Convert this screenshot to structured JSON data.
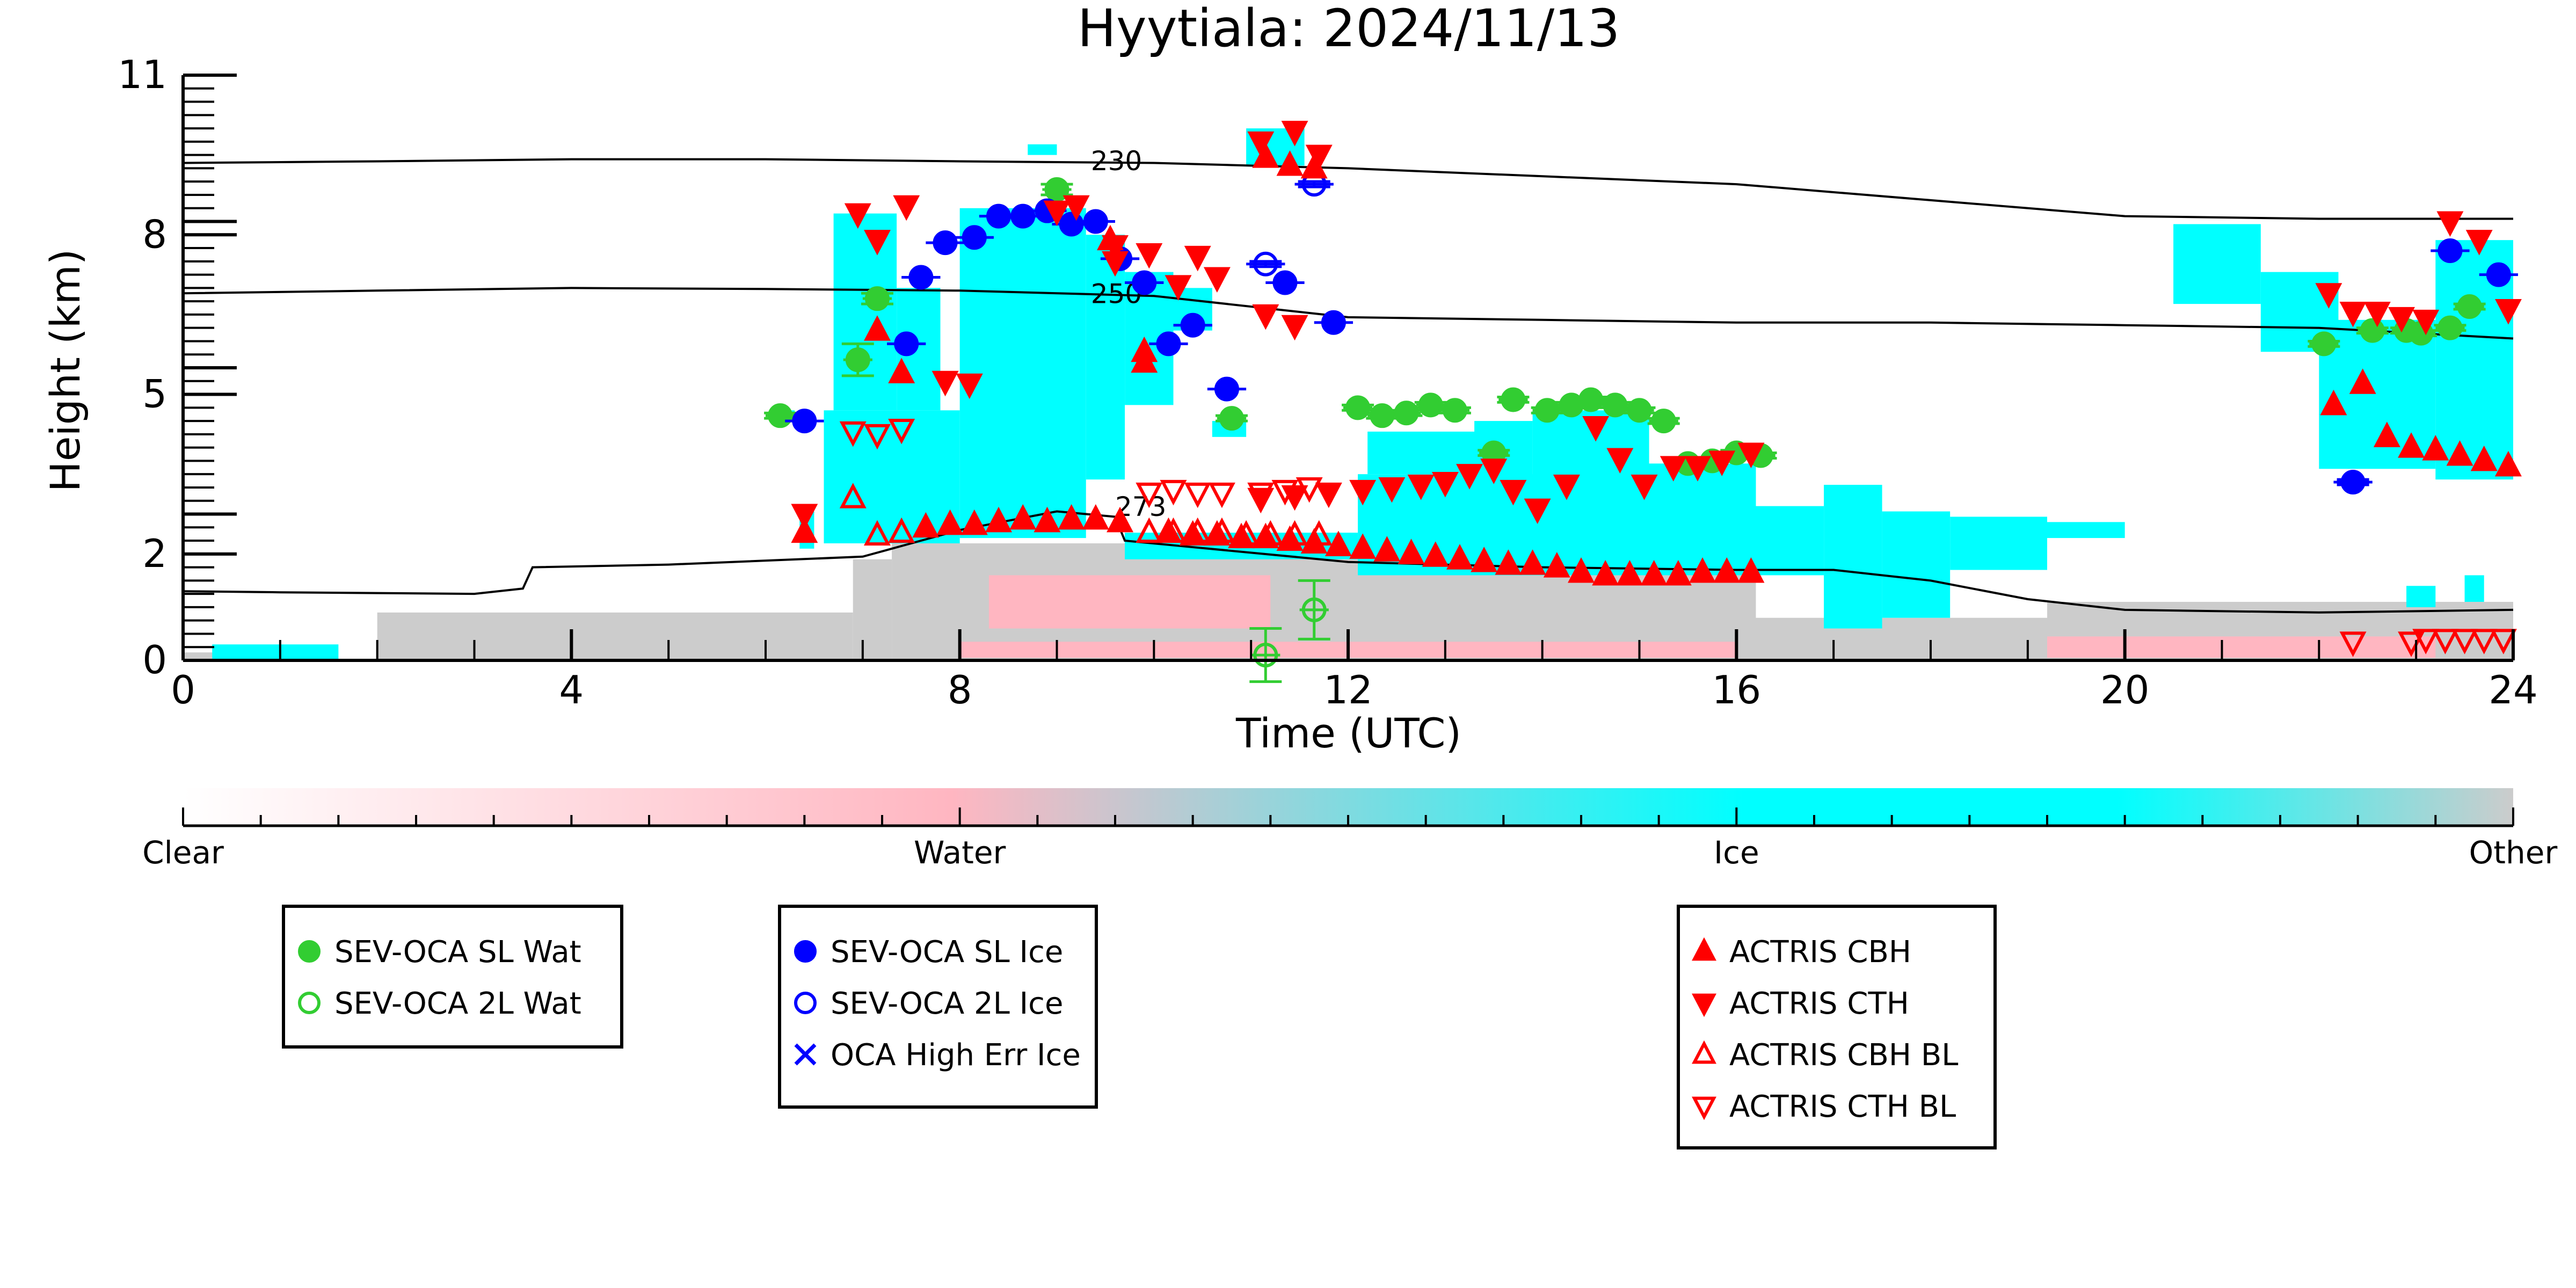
{
  "chart_data": {
    "type": "scatter",
    "title": "Hyytiala: 2024/11/13",
    "xlabel": "Time (UTC)",
    "ylabel": "Height (km)",
    "xlim": [
      0,
      24
    ],
    "ylim": [
      0,
      11
    ],
    "xticks": [
      "0",
      "4",
      "8",
      "12",
      "16",
      "20",
      "24"
    ],
    "yticks": [
      "0",
      "2",
      "5",
      "8",
      "11"
    ],
    "grid": false,
    "colors": {
      "clear": "#ffffff",
      "water": "#ffb6c1",
      "ice": "#00ffff",
      "other": "#cccccc",
      "sev_wat": "#32cd32",
      "sev_ice": "#0000ff",
      "actris": "#ff0000",
      "contour": "#000000"
    },
    "colorbar": {
      "labels": [
        "Clear",
        "Water",
        "Ice",
        "Other"
      ]
    },
    "isotherms": [
      {
        "label": "230",
        "x": [
          0,
          2,
          4,
          6,
          8,
          10,
          12,
          14,
          16,
          18,
          20,
          22,
          24
        ],
        "y": [
          9.35,
          9.38,
          9.42,
          9.42,
          9.38,
          9.35,
          9.25,
          9.1,
          8.95,
          8.65,
          8.35,
          8.3,
          8.3
        ]
      },
      {
        "label": "250",
        "x": [
          0,
          2,
          4,
          6,
          8,
          10,
          12,
          14,
          16,
          18,
          20,
          22,
          24
        ],
        "y": [
          6.9,
          6.95,
          7.0,
          6.98,
          6.95,
          6.85,
          6.45,
          6.4,
          6.35,
          6.35,
          6.3,
          6.25,
          6.05
        ]
      },
      {
        "label": "273",
        "x": [
          0,
          1,
          3,
          3.5,
          3.6,
          5,
          7,
          8,
          9,
          9.6,
          9.7,
          12,
          14,
          16,
          17,
          18,
          19,
          20,
          22,
          24
        ],
        "y": [
          1.3,
          1.28,
          1.25,
          1.35,
          1.75,
          1.8,
          1.95,
          2.45,
          2.8,
          2.7,
          2.25,
          1.85,
          1.75,
          1.7,
          1.7,
          1.5,
          1.15,
          0.95,
          0.9,
          0.95
        ]
      }
    ],
    "isotherm_label_pos": [
      {
        "x": 9.35,
        "y": 9.35
      },
      {
        "x": 9.35,
        "y": 6.85
      },
      {
        "x": 9.6,
        "y": 2.85
      }
    ],
    "legends": [
      {
        "entries": [
          {
            "label": "SEV-OCA SL Wat",
            "marker": "filled-circle",
            "color": "#32cd32"
          },
          {
            "label": "SEV-OCA 2L Wat",
            "marker": "open-circle",
            "color": "#32cd32"
          }
        ]
      },
      {
        "entries": [
          {
            "label": "SEV-OCA SL Ice",
            "marker": "filled-circle",
            "color": "#0000ff"
          },
          {
            "label": "SEV-OCA 2L Ice",
            "marker": "open-circle",
            "color": "#0000ff"
          },
          {
            "label": "OCA High Err Ice",
            "marker": "x",
            "color": "#0000ff"
          }
        ]
      },
      {
        "entries": [
          {
            "label": "ACTRIS CBH",
            "marker": "triangle-up",
            "color": "#ff0000"
          },
          {
            "label": "ACTRIS CTH",
            "marker": "triangle-down",
            "color": "#ff0000"
          },
          {
            "label": "ACTRIS CBH BL",
            "marker": "open-triangle-up",
            "color": "#ff0000"
          },
          {
            "label": "ACTRIS CTH BL",
            "marker": "open-triangle-down",
            "color": "#ff0000"
          }
        ]
      }
    ],
    "series": [
      {
        "name": "SEV-OCA SL Wat",
        "x": [
          6.15,
          6.95,
          7.15,
          9.0,
          10.8,
          12.1,
          12.35,
          12.6,
          12.85,
          13.1,
          13.5,
          13.7,
          14.05,
          14.3,
          14.5,
          14.75,
          15.0,
          15.25,
          15.5,
          15.75,
          16.0,
          16.25,
          22.05,
          22.55,
          22.9,
          23.05,
          23.35,
          23.55
        ],
        "y": [
          4.6,
          5.65,
          6.8,
          8.85,
          4.55,
          4.75,
          4.6,
          4.65,
          4.8,
          4.7,
          3.9,
          4.9,
          4.7,
          4.8,
          4.9,
          4.8,
          4.7,
          4.5,
          3.7,
          3.75,
          3.9,
          3.85,
          5.95,
          6.2,
          6.2,
          6.15,
          6.25,
          6.65
        ],
        "xerr": 0.15,
        "yerr": [
          0.05,
          0.3,
          0.1,
          0.1,
          0.05,
          0.05,
          0.05,
          0.05,
          0.05,
          0.05,
          0.05,
          0.05,
          0.05,
          0.05,
          0.05,
          0.05,
          0.05,
          0.05,
          0.05,
          0.05,
          0.05,
          0.05,
          0.05,
          0.05,
          0.05,
          0.05,
          0.05,
          0.05
        ]
      },
      {
        "name": "SEV-OCA 2L Wat",
        "x": [
          11.15,
          11.65
        ],
        "y": [
          0.1,
          0.95
        ],
        "xerr": 0.15,
        "yerr": [
          0.5,
          0.55
        ]
      },
      {
        "name": "SEV-OCA SL Ice",
        "x": [
          6.4,
          7.45,
          7.6,
          7.85,
          8.15,
          8.4,
          8.65,
          8.9,
          9.15,
          9.4,
          9.65,
          9.9,
          10.15,
          10.4,
          10.75,
          11.35,
          11.85,
          22.35,
          23.35,
          23.85
        ],
        "y": [
          4.5,
          5.95,
          7.2,
          7.85,
          7.95,
          8.35,
          8.35,
          8.45,
          8.2,
          8.25,
          7.55,
          7.1,
          5.95,
          6.3,
          5.1,
          7.1,
          6.35,
          3.35,
          7.7,
          7.25
        ],
        "xerr": 0.2,
        "yerr": [
          0.03,
          0.03,
          0.03,
          0.03,
          0.03,
          0.03,
          0.03,
          0.03,
          0.03,
          0.03,
          0.03,
          0.03,
          0.03,
          0.03,
          0.03,
          0.03,
          0.03,
          0.05,
          0.03,
          0.03
        ]
      },
      {
        "name": "SEV-OCA 2L Ice",
        "x": [
          11.15,
          11.65
        ],
        "y": [
          7.45,
          8.95
        ],
        "xerr": 0.2,
        "yerr": [
          0.05,
          0.05
        ]
      },
      {
        "name": "ACTRIS CBH",
        "x": [
          6.4,
          7.15,
          7.4,
          7.65,
          7.9,
          8.15,
          8.4,
          8.65,
          8.9,
          9.15,
          9.4,
          9.65,
          9.9,
          10.15,
          10.4,
          10.65,
          10.9,
          11.15,
          11.4,
          11.65,
          11.9,
          12.15,
          12.4,
          12.65,
          12.9,
          13.15,
          13.4,
          13.65,
          13.9,
          14.15,
          14.4,
          14.65,
          14.9,
          15.15,
          15.4,
          15.65,
          15.9,
          16.15,
          9.55,
          9.9,
          11.15,
          11.4,
          11.65,
          22.15,
          22.45,
          22.7,
          22.95,
          23.2,
          23.45,
          23.7,
          23.95
        ],
        "y": [
          2.4,
          6.2,
          5.4,
          2.5,
          2.55,
          2.55,
          2.6,
          2.65,
          2.6,
          2.65,
          2.65,
          2.6,
          5.6,
          2.4,
          2.35,
          2.35,
          2.3,
          2.3,
          2.25,
          2.2,
          2.15,
          2.1,
          2.05,
          2.0,
          1.95,
          1.9,
          1.85,
          1.8,
          1.8,
          1.75,
          1.65,
          1.6,
          1.6,
          1.6,
          1.6,
          1.65,
          1.65,
          1.65,
          7.9,
          5.8,
          9.45,
          9.3,
          9.25,
          4.8,
          5.2,
          4.2,
          4.0,
          3.95,
          3.85,
          3.75,
          3.65
        ]
      },
      {
        "name": "ACTRIS CTH",
        "x": [
          6.4,
          6.95,
          7.15,
          7.45,
          7.85,
          8.1,
          9.2,
          9.6,
          9.95,
          10.25,
          10.65,
          11.1,
          11.45,
          11.8,
          12.15,
          12.45,
          12.75,
          13.0,
          13.25,
          13.5,
          13.7,
          13.95,
          14.25,
          14.55,
          14.8,
          15.05,
          15.35,
          15.6,
          15.85,
          16.15,
          9.0,
          9.6,
          10.45,
          11.15,
          11.45,
          22.1,
          22.35,
          22.6,
          22.85,
          23.1,
          23.35,
          23.65,
          23.95,
          11.1,
          11.45,
          11.7
        ],
        "y": [
          2.75,
          8.4,
          7.9,
          8.55,
          5.25,
          5.2,
          8.55,
          7.8,
          7.65,
          7.05,
          7.2,
          3.05,
          3.1,
          3.15,
          3.2,
          3.25,
          3.3,
          3.35,
          3.5,
          3.6,
          3.2,
          2.85,
          3.3,
          4.4,
          3.8,
          3.3,
          3.65,
          3.65,
          3.75,
          3.9,
          8.45,
          7.5,
          7.6,
          6.5,
          6.3,
          6.9,
          6.55,
          6.55,
          6.45,
          6.4,
          8.25,
          7.9,
          6.6,
          9.75,
          9.95,
          9.5
        ]
      },
      {
        "name": "ACTRIS CBH BL",
        "x": [
          6.9,
          7.15,
          7.4,
          9.95,
          10.2,
          10.45,
          10.7,
          10.95,
          11.2,
          11.45,
          11.7
        ],
        "y": [
          3.05,
          2.35,
          2.4,
          2.4,
          2.4,
          2.4,
          2.4,
          2.35,
          2.35,
          2.35,
          2.35
        ]
      },
      {
        "name": "ACTRIS CTH BL",
        "x": [
          6.9,
          7.15,
          7.4,
          9.95,
          10.2,
          10.45,
          10.7,
          11.1,
          11.35,
          11.6,
          22.35,
          22.95,
          23.1,
          23.3,
          23.5,
          23.7,
          23.9
        ],
        "y": [
          4.3,
          4.25,
          4.35,
          3.15,
          3.2,
          3.15,
          3.15,
          3.15,
          3.2,
          3.25,
          0.35,
          0.35,
          0.4,
          0.4,
          0.4,
          0.4,
          0.4
        ]
      }
    ],
    "cloud_mask": {
      "note": "Cloudnet target classification shown as coloured bands",
      "other": [
        {
          "x": [
            0,
            0.6
          ],
          "y": [
            0,
            0.15
          ]
        },
        {
          "x": [
            2,
            6.9
          ],
          "y": [
            0,
            0.9
          ]
        },
        {
          "x": [
            6.9,
            7.3
          ],
          "y": [
            0,
            1.9
          ]
        },
        {
          "x": [
            7.3,
            16.2
          ],
          "y": [
            0,
            2.2
          ]
        },
        {
          "x": [
            16.2,
            19.2
          ],
          "y": [
            0,
            0.8
          ]
        },
        {
          "x": [
            19.2,
            24
          ],
          "y": [
            0,
            1.1
          ]
        }
      ],
      "water": [
        {
          "x": [
            8.3,
            11.2
          ],
          "y": [
            0.6,
            1.6
          ]
        },
        {
          "x": [
            8.0,
            16.0
          ],
          "y": [
            0.05,
            0.35
          ]
        },
        {
          "x": [
            19.2,
            23.2
          ],
          "y": [
            0.05,
            0.45
          ]
        }
      ],
      "ice": [
        {
          "x": [
            0.3,
            1.6
          ],
          "y": [
            0,
            0.3
          ]
        },
        {
          "x": [
            6.2,
            6.3
          ],
          "y": [
            4.6,
            4.7
          ]
        },
        {
          "x": [
            6.35,
            6.5
          ],
          "y": [
            2.1,
            2.8
          ]
        },
        {
          "x": [
            6.6,
            8.0
          ],
          "y": [
            2.2,
            4.7
          ]
        },
        {
          "x": [
            6.7,
            7.35
          ],
          "y": [
            4.7,
            8.4
          ]
        },
        {
          "x": [
            7.35,
            7.8
          ],
          "y": [
            4.7,
            7.0
          ]
        },
        {
          "x": [
            8.0,
            9.3
          ],
          "y": [
            2.3,
            8.5
          ]
        },
        {
          "x": [
            9.3,
            9.7
          ],
          "y": [
            3.4,
            8.0
          ]
        },
        {
          "x": [
            9.7,
            10.2
          ],
          "y": [
            4.8,
            7.3
          ]
        },
        {
          "x": [
            10.2,
            10.6
          ],
          "y": [
            6.2,
            7.0
          ]
        },
        {
          "x": [
            10.6,
            10.95
          ],
          "y": [
            4.2,
            4.5
          ]
        },
        {
          "x": [
            9.7,
            12.1
          ],
          "y": [
            1.9,
            2.4
          ]
        },
        {
          "x": [
            12.1,
            15.0
          ],
          "y": [
            1.6,
            3.5
          ]
        },
        {
          "x": [
            12.2,
            13.6
          ],
          "y": [
            3.5,
            4.3
          ]
        },
        {
          "x": [
            13.3,
            13.9
          ],
          "y": [
            2.2,
            4.5
          ]
        },
        {
          "x": [
            13.9,
            15.1
          ],
          "y": [
            1.8,
            4.7
          ]
        },
        {
          "x": [
            15.0,
            16.2
          ],
          "y": [
            1.6,
            3.7
          ]
        },
        {
          "x": [
            16.2,
            16.9
          ],
          "y": [
            1.6,
            2.9
          ]
        },
        {
          "x": [
            16.9,
            17.5
          ],
          "y": [
            0.6,
            3.3
          ]
        },
        {
          "x": [
            17.5,
            18.2
          ],
          "y": [
            0.8,
            2.8
          ]
        },
        {
          "x": [
            18.2,
            19.2
          ],
          "y": [
            1.7,
            2.7
          ]
        },
        {
          "x": [
            19.2,
            20.0
          ],
          "y": [
            2.3,
            2.6
          ]
        },
        {
          "x": [
            10.95,
            11.55
          ],
          "y": [
            9.3,
            10.0
          ]
        },
        {
          "x": [
            8.7,
            9.0
          ],
          "y": [
            9.5,
            9.7
          ]
        },
        {
          "x": [
            20.5,
            21.4
          ],
          "y": [
            6.7,
            8.2
          ]
        },
        {
          "x": [
            21.4,
            22.2
          ],
          "y": [
            5.8,
            7.3
          ]
        },
        {
          "x": [
            22.0,
            23.2
          ],
          "y": [
            3.6,
            6.4
          ]
        },
        {
          "x": [
            23.2,
            24.0
          ],
          "y": [
            3.4,
            7.9
          ]
        },
        {
          "x": [
            22.9,
            23.2
          ],
          "y": [
            1.0,
            1.4
          ]
        },
        {
          "x": [
            23.5,
            23.7
          ],
          "y": [
            1.1,
            1.6
          ]
        }
      ]
    }
  }
}
